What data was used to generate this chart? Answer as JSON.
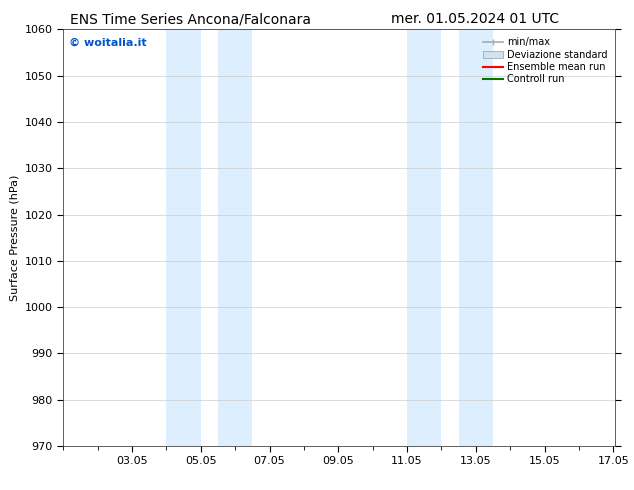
{
  "title_left": "ENS Time Series Ancona/Falconara",
  "title_right": "mer. 01.05.2024 01 UTC",
  "ylabel": "Surface Pressure (hPa)",
  "ylim": [
    970,
    1060
  ],
  "yticks": [
    970,
    980,
    990,
    1000,
    1010,
    1020,
    1030,
    1040,
    1050,
    1060
  ],
  "xlim": [
    1.0,
    17.05
  ],
  "xtick_labels": [
    "03.05",
    "05.05",
    "07.05",
    "09.05",
    "11.05",
    "13.05",
    "15.05",
    "17.05"
  ],
  "xtick_positions": [
    3,
    5,
    7,
    9,
    11,
    13,
    15,
    17
  ],
  "shaded_bands": [
    {
      "xmin": 4.0,
      "xmax": 5.0
    },
    {
      "xmin": 5.5,
      "xmax": 6.5
    },
    {
      "xmin": 11.0,
      "xmax": 12.0
    },
    {
      "xmin": 12.5,
      "xmax": 13.5
    }
  ],
  "shaded_color": "#ddeeff",
  "watermark_text": "© woitalia.it",
  "watermark_color": "#0055cc",
  "legend_entries": [
    {
      "label": "min/max",
      "color": "#aaaaaa",
      "lw": 1.2,
      "style": "minmax"
    },
    {
      "label": "Deviazione standard",
      "color": "#d0e4f0",
      "lw": 6,
      "style": "band"
    },
    {
      "label": "Ensemble mean run",
      "color": "#ff0000",
      "lw": 1.5,
      "style": "line"
    },
    {
      "label": "Controll run",
      "color": "#007700",
      "lw": 1.5,
      "style": "line"
    }
  ],
  "bg_color": "#ffffff",
  "grid_color": "#cccccc",
  "title_fontsize": 10,
  "ylabel_fontsize": 8,
  "tick_fontsize": 8,
  "legend_fontsize": 7,
  "watermark_fontsize": 8
}
